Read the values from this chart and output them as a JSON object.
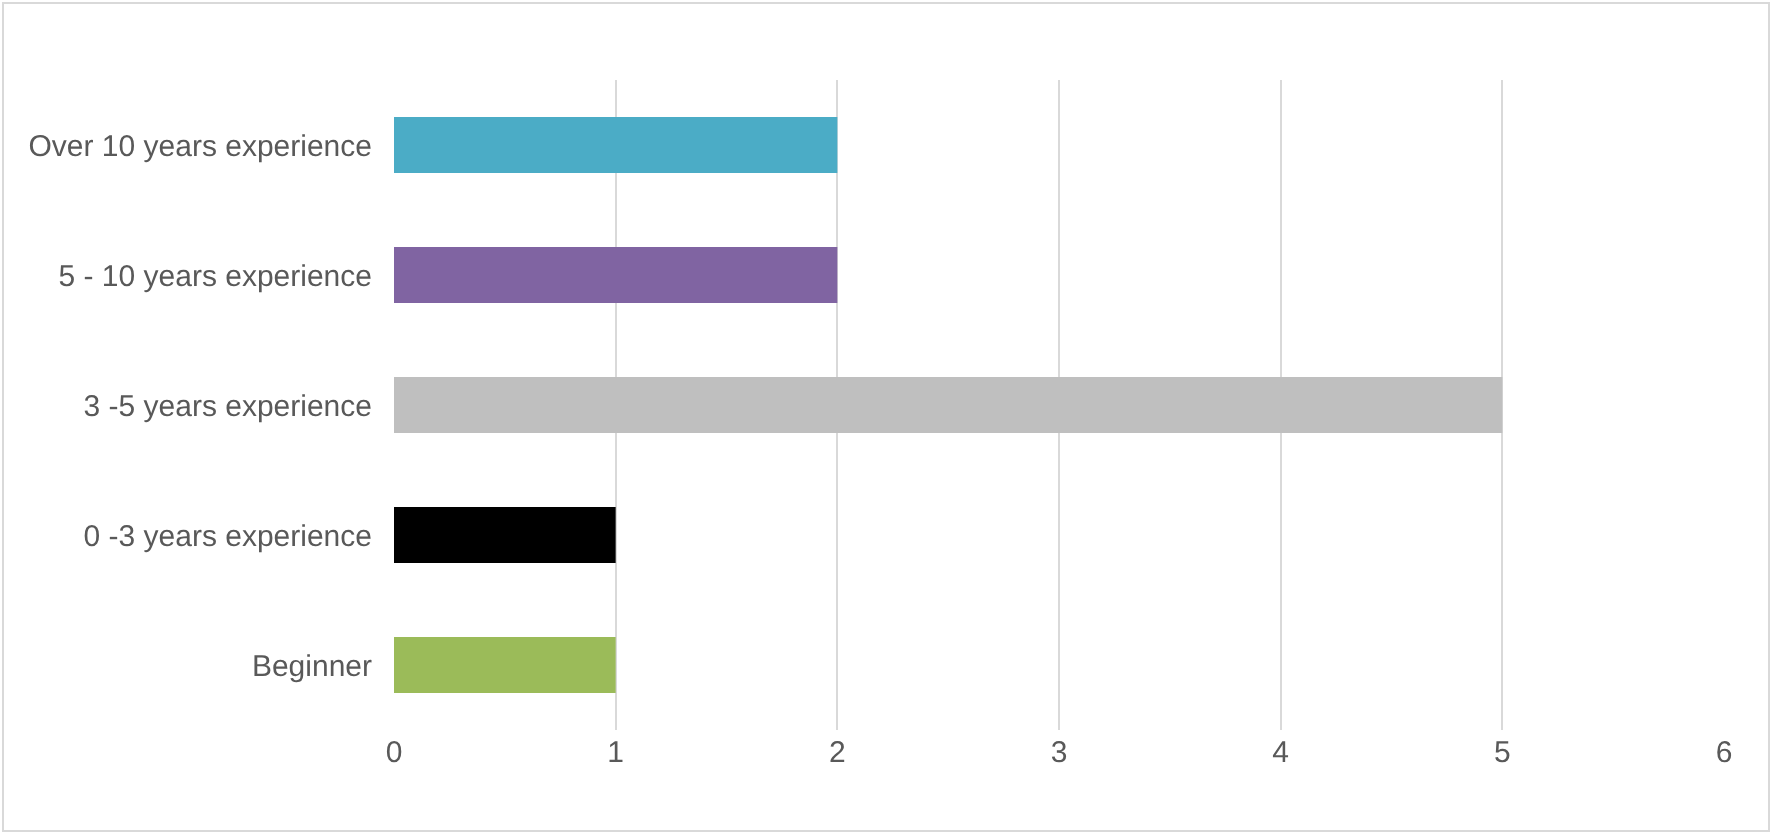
{
  "chart_data": {
    "type": "bar",
    "orientation": "horizontal",
    "categories": [
      "Over 10 years experience",
      "5 - 10 years experience",
      "3 -5 years experience",
      "0 -3 years experience",
      "Beginner"
    ],
    "values": [
      2,
      2,
      5,
      1,
      1
    ],
    "colors": [
      "#4bacc6",
      "#8064a2",
      "#bfbfbf",
      "#000000",
      "#9bbb59"
    ],
    "xlim": [
      0,
      6
    ],
    "xticks": [
      0,
      1,
      2,
      3,
      4,
      5,
      6
    ],
    "grid": "x"
  }
}
